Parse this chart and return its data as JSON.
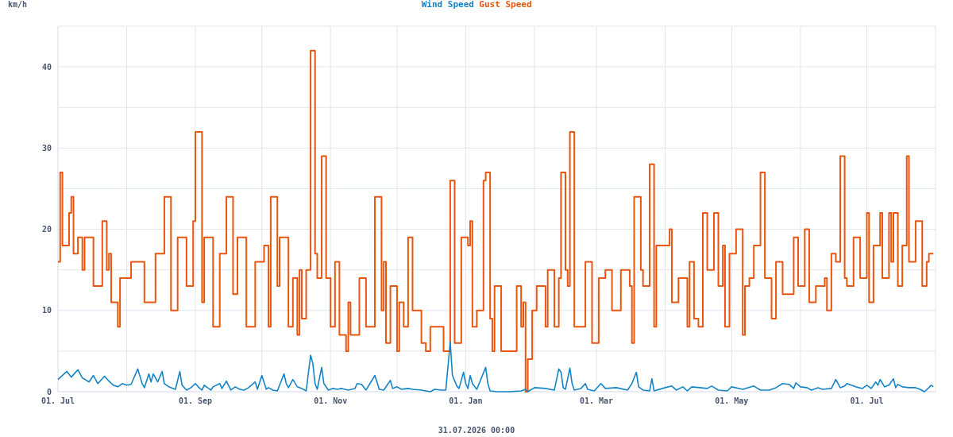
{
  "chart_data": {
    "type": "line",
    "ylabel": "km/h",
    "legend": "top",
    "grid": true,
    "xlim": [
      "2025-07-01",
      "2026-08-01"
    ],
    "xticks": [
      {
        "value": "2025-07-01",
        "label": "01. Jul"
      },
      {
        "value": "2025-08-01",
        "label": null
      },
      {
        "value": "2025-09-01",
        "label": "01. Sep"
      },
      {
        "value": "2025-10-01",
        "label": null
      },
      {
        "value": "2025-11-01",
        "label": "01. Nov"
      },
      {
        "value": "2025-12-01",
        "label": null
      },
      {
        "value": "2026-01-01",
        "label": "01. Jan"
      },
      {
        "value": "2026-02-01",
        "label": null
      },
      {
        "value": "2026-03-01",
        "label": "01. Mar"
      },
      {
        "value": "2026-04-01",
        "label": null
      },
      {
        "value": "2026-05-01",
        "label": "01. May"
      },
      {
        "value": "2026-06-01",
        "label": null
      },
      {
        "value": "2026-07-01",
        "label": "01. Jul"
      }
    ],
    "ylim": [
      0,
      45
    ],
    "yticks": [
      0,
      {
        "value": 5,
        "label": null
      },
      10,
      {
        "value": 15,
        "label": null
      },
      20,
      {
        "value": 25,
        "label": null
      },
      30,
      {
        "value": 35,
        "label": null
      },
      40
    ],
    "annotations": [
      "31.07.2026 00:00"
    ],
    "series": [
      {
        "name": "Wind Speed",
        "color": "#1584c6",
        "x": [
          "2025-07-01",
          "2025-07-05",
          "2025-07-07",
          "2025-07-10",
          "2025-07-12",
          "2025-07-15",
          "2025-07-17",
          "2025-07-19",
          "2025-07-22",
          "2025-07-24",
          "2025-07-26",
          "2025-07-28",
          "2025-07-30",
          "2025-08-01",
          "2025-08-03",
          "2025-08-06",
          "2025-08-08",
          "2025-08-09",
          "2025-08-11",
          "2025-08-12",
          "2025-08-13",
          "2025-08-15",
          "2025-08-17",
          "2025-08-18",
          "2025-08-20",
          "2025-08-22",
          "2025-08-23",
          "2025-08-25",
          "2025-08-26",
          "2025-08-28",
          "2025-08-30",
          "2025-09-01",
          "2025-09-03",
          "2025-09-04",
          "2025-09-05",
          "2025-09-08",
          "2025-09-09",
          "2025-09-12",
          "2025-09-13",
          "2025-09-15",
          "2025-09-17",
          "2025-09-19",
          "2025-09-21",
          "2025-09-23",
          "2025-09-25",
          "2025-09-28",
          "2025-09-29",
          "2025-10-01",
          "2025-10-03",
          "2025-10-04",
          "2025-10-06",
          "2025-10-08",
          "2025-10-11",
          "2025-10-12",
          "2025-10-13",
          "2025-10-15",
          "2025-10-17",
          "2025-10-19",
          "2025-10-21",
          "2025-10-23",
          "2025-10-24",
          "2025-10-25",
          "2025-10-26",
          "2025-10-28",
          "2025-10-29",
          "2025-10-31",
          "2025-11-02",
          "2025-11-04",
          "2025-11-06",
          "2025-11-09",
          "2025-11-12",
          "2025-11-13",
          "2025-11-15",
          "2025-11-17",
          "2025-11-19",
          "2025-11-21",
          "2025-11-23",
          "2025-11-25",
          "2025-11-28",
          "2025-11-29",
          "2025-12-01",
          "2025-12-03",
          "2025-12-06",
          "2025-12-08",
          "2025-12-12",
          "2025-12-16",
          "2025-12-18",
          "2025-12-21",
          "2025-12-23",
          "2025-12-25",
          "2025-12-26",
          "2025-12-28",
          "2025-12-29",
          "2025-12-31",
          "2026-01-01",
          "2026-01-02",
          "2026-01-03",
          "2026-01-04",
          "2026-01-06",
          "2026-01-10",
          "2026-01-11",
          "2026-01-12",
          "2026-01-15",
          "2026-01-21",
          "2026-01-26",
          "2026-01-28",
          "2026-01-29",
          "2026-02-01",
          "2026-02-06",
          "2026-02-10",
          "2026-02-12",
          "2026-02-13",
          "2026-02-14",
          "2026-02-15",
          "2026-02-17",
          "2026-02-18",
          "2026-02-19",
          "2026-02-22",
          "2026-02-24",
          "2026-02-25",
          "2026-02-28",
          "2026-03-03",
          "2026-03-05",
          "2026-03-10",
          "2026-03-15",
          "2026-03-17",
          "2026-03-19",
          "2026-03-20",
          "2026-03-22",
          "2026-03-25",
          "2026-03-26",
          "2026-03-27",
          "2026-04-01",
          "2026-04-04",
          "2026-04-06",
          "2026-04-09",
          "2026-04-11",
          "2026-04-13",
          "2026-04-20",
          "2026-04-22",
          "2026-04-25",
          "2026-04-29",
          "2026-05-01",
          "2026-05-06",
          "2026-05-11",
          "2026-05-14",
          "2026-05-18",
          "2026-05-21",
          "2026-05-24",
          "2026-05-27",
          "2026-05-29",
          "2026-05-30",
          "2026-06-01",
          "2026-06-04",
          "2026-06-06",
          "2026-06-09",
          "2026-06-11",
          "2026-06-15",
          "2026-06-17",
          "2026-06-19",
          "2026-06-21",
          "2026-06-22",
          "2026-06-26",
          "2026-06-29",
          "2026-07-01",
          "2026-07-03",
          "2026-07-05",
          "2026-07-06",
          "2026-07-07",
          "2026-07-09",
          "2026-07-11",
          "2026-07-13",
          "2026-07-14",
          "2026-07-15",
          "2026-07-17",
          "2026-07-20",
          "2026-07-23",
          "2026-07-25",
          "2026-07-27",
          "2026-07-29",
          "2026-07-30",
          "2026-07-31"
        ],
        "values": [
          1.5,
          2.5,
          1.8,
          2.7,
          1.7,
          1.2,
          2.0,
          1.0,
          1.9,
          1.3,
          0.8,
          0.6,
          1.0,
          0.8,
          0.9,
          2.8,
          1.0,
          0.5,
          2.2,
          1.2,
          2.2,
          1.2,
          2.5,
          1.0,
          0.6,
          0.4,
          0.3,
          2.5,
          0.8,
          0.2,
          0.5,
          1.0,
          0.4,
          0.2,
          0.8,
          0.2,
          0.6,
          1.0,
          0.4,
          1.3,
          0.2,
          0.6,
          0.3,
          0.2,
          0.5,
          1.2,
          0.3,
          2.0,
          0.3,
          0.5,
          0.2,
          0.1,
          2.2,
          1.0,
          0.5,
          1.5,
          0.6,
          0.4,
          0.1,
          4.5,
          3.5,
          1.0,
          0.3,
          3.0,
          1.0,
          0.2,
          0.4,
          0.3,
          0.4,
          0.2,
          0.4,
          1.0,
          0.9,
          0.2,
          1.1,
          2.0,
          0.3,
          0.2,
          1.4,
          0.4,
          0.6,
          0.3,
          0.4,
          0.3,
          0.2,
          0.0,
          0.3,
          0.2,
          0.2,
          6.1,
          2.0,
          0.7,
          0.4,
          2.4,
          1.0,
          0.4,
          2.0,
          1.0,
          0.3,
          3.0,
          1.0,
          0.1,
          0.0,
          0.0,
          0.1,
          0.3,
          0.0,
          0.5,
          0.4,
          0.2,
          2.8,
          2.4,
          0.5,
          0.3,
          2.9,
          1.0,
          0.2,
          0.4,
          1.0,
          0.3,
          0.1,
          1.0,
          0.4,
          0.5,
          0.2,
          1.0,
          2.4,
          0.6,
          0.2,
          0.1,
          1.6,
          0.1,
          0.5,
          0.7,
          0.2,
          0.6,
          0.1,
          0.6,
          0.4,
          0.7,
          0.2,
          0.1,
          0.6,
          0.3,
          0.7,
          0.2,
          0.2,
          0.5,
          1.0,
          0.9,
          0.4,
          1.1,
          0.6,
          0.5,
          0.2,
          0.5,
          0.3,
          0.4,
          1.5,
          0.5,
          0.7,
          1.0,
          0.6,
          0.4,
          0.8,
          0.4,
          1.2,
          0.8,
          1.5,
          0.6,
          0.8,
          1.6,
          0.5,
          0.9,
          0.6,
          0.5,
          0.5,
          0.3,
          0.0,
          0.5,
          0.8,
          0.6
        ]
      },
      {
        "name": "Gust Speed",
        "color": "#e8560f",
        "type": "step",
        "x": [
          "2025-07-01",
          "2025-07-02",
          "2025-07-03",
          "2025-07-06",
          "2025-07-07",
          "2025-07-08",
          "2025-07-10",
          "2025-07-12",
          "2025-07-13",
          "2025-07-17",
          "2025-07-21",
          "2025-07-23",
          "2025-07-24",
          "2025-07-25",
          "2025-07-28",
          "2025-07-29",
          "2025-08-03",
          "2025-08-06",
          "2025-08-09",
          "2025-08-12",
          "2025-08-14",
          "2025-08-18",
          "2025-08-21",
          "2025-08-24",
          "2025-08-28",
          "2025-08-31",
          "2025-09-01",
          "2025-09-04",
          "2025-09-05",
          "2025-09-09",
          "2025-09-12",
          "2025-09-15",
          "2025-09-18",
          "2025-09-20",
          "2025-09-24",
          "2025-09-28",
          "2025-10-02",
          "2025-10-04",
          "2025-10-05",
          "2025-10-08",
          "2025-10-09",
          "2025-10-13",
          "2025-10-15",
          "2025-10-17",
          "2025-10-18",
          "2025-10-19",
          "2025-10-21",
          "2025-10-23",
          "2025-10-25",
          "2025-10-26",
          "2025-10-28",
          "2025-10-30",
          "2025-11-01",
          "2025-11-03",
          "2025-11-05",
          "2025-11-08",
          "2025-11-09",
          "2025-11-10",
          "2025-11-14",
          "2025-11-17",
          "2025-11-21",
          "2025-11-24",
          "2025-11-25",
          "2025-11-26",
          "2025-11-28",
          "2025-12-01",
          "2025-12-02",
          "2025-12-04",
          "2025-12-06",
          "2025-12-08",
          "2025-12-12",
          "2025-12-14",
          "2025-12-16",
          "2025-12-18",
          "2025-12-22",
          "2025-12-25",
          "2025-12-27",
          "2025-12-30",
          "2026-01-02",
          "2026-01-03",
          "2026-01-04",
          "2026-01-06",
          "2026-01-09",
          "2026-01-10",
          "2026-01-12",
          "2026-01-13",
          "2026-01-14",
          "2026-01-17",
          "2026-01-20",
          "2026-01-24",
          "2026-01-26",
          "2026-01-27",
          "2026-01-28",
          "2026-01-29",
          "2026-01-31",
          "2026-02-02",
          "2026-02-06",
          "2026-02-07",
          "2026-02-10",
          "2026-02-12",
          "2026-02-13",
          "2026-02-15",
          "2026-02-16",
          "2026-02-17",
          "2026-02-19",
          "2026-02-24",
          "2026-02-27",
          "2026-03-02",
          "2026-03-05",
          "2026-03-08",
          "2026-03-12",
          "2026-03-16",
          "2026-03-17",
          "2026-03-18",
          "2026-03-21",
          "2026-03-22",
          "2026-03-25",
          "2026-03-27",
          "2026-03-28",
          "2026-03-31",
          "2026-04-03",
          "2026-04-04",
          "2026-04-07",
          "2026-04-11",
          "2026-04-12",
          "2026-04-14",
          "2026-04-16",
          "2026-04-18",
          "2026-04-20",
          "2026-04-23",
          "2026-04-25",
          "2026-04-27",
          "2026-04-28",
          "2026-04-30",
          "2026-05-03",
          "2026-05-06",
          "2026-05-07",
          "2026-05-09",
          "2026-05-11",
          "2026-05-14",
          "2026-05-16",
          "2026-05-19",
          "2026-05-21",
          "2026-05-24",
          "2026-05-29",
          "2026-05-31",
          "2026-06-03",
          "2026-06-05",
          "2026-06-08",
          "2026-06-12",
          "2026-06-13",
          "2026-06-15",
          "2026-06-17",
          "2026-06-19",
          "2026-06-21",
          "2026-06-22",
          "2026-06-25",
          "2026-06-27",
          "2026-06-28",
          "2026-07-01",
          "2026-07-02",
          "2026-07-04",
          "2026-07-07",
          "2026-07-08",
          "2026-07-11",
          "2026-07-12",
          "2026-07-13",
          "2026-07-15",
          "2026-07-17",
          "2026-07-19",
          "2026-07-20",
          "2026-07-23",
          "2026-07-26",
          "2026-07-28",
          "2026-07-29",
          "2026-07-31"
        ],
        "values": [
          16,
          27,
          18,
          22,
          24,
          17,
          19,
          15,
          19,
          13,
          21,
          15,
          17,
          11,
          8,
          14,
          16,
          16,
          11,
          11,
          17,
          24,
          10,
          19,
          13,
          21,
          32,
          11,
          19,
          8,
          17,
          24,
          12,
          19,
          8,
          16,
          18,
          8,
          24,
          13,
          19,
          8,
          14,
          7,
          15,
          9,
          15,
          42,
          17,
          14,
          29,
          14,
          8,
          16,
          7,
          5,
          11,
          7,
          14,
          8,
          24,
          10,
          16,
          6,
          13,
          5,
          11,
          8,
          19,
          10,
          6,
          5,
          8,
          8,
          5,
          26,
          6,
          19,
          18,
          21,
          8,
          10,
          26,
          27,
          9,
          5,
          13,
          5,
          5,
          13,
          8,
          11,
          0,
          4,
          10,
          13,
          8,
          15,
          8,
          14,
          27,
          15,
          13,
          32,
          8,
          16,
          6,
          14,
          15,
          10,
          15,
          13,
          6,
          24,
          15,
          13,
          28,
          8,
          18,
          18,
          20,
          11,
          14,
          8,
          16,
          9,
          8,
          22,
          15,
          22,
          13,
          18,
          8,
          17,
          20,
          7,
          13,
          14,
          18,
          27,
          14,
          9,
          16,
          12,
          19,
          13,
          20,
          11,
          13,
          14,
          10,
          17,
          16,
          29,
          14,
          13,
          19,
          19,
          14,
          22,
          11,
          18,
          22,
          14,
          22,
          16,
          22,
          13,
          18,
          29,
          16,
          21,
          13,
          16,
          17,
          17
        ]
      }
    ]
  }
}
